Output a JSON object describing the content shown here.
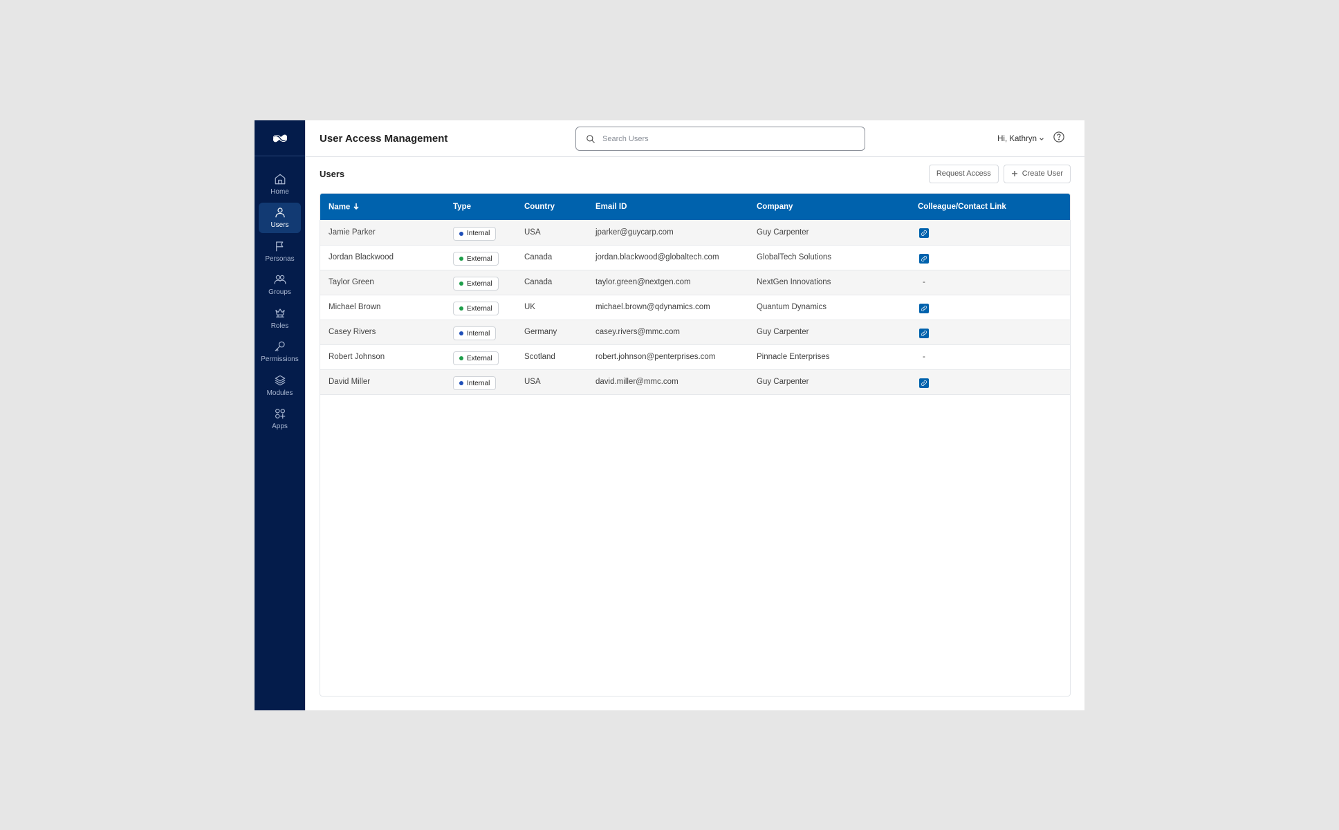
{
  "header": {
    "title": "User Access Management",
    "search_placeholder": "Search Users",
    "greeting": "Hi, Kathryn"
  },
  "sidebar": {
    "items": [
      {
        "label": "Home",
        "icon": "home-icon"
      },
      {
        "label": "Users",
        "icon": "user-icon",
        "active": true
      },
      {
        "label": "Personas",
        "icon": "flag-icon"
      },
      {
        "label": "Groups",
        "icon": "groups-icon"
      },
      {
        "label": "Roles",
        "icon": "roles-icon"
      },
      {
        "label": "Permissions",
        "icon": "key-icon"
      },
      {
        "label": "Modules",
        "icon": "layers-icon"
      },
      {
        "label": "Apps",
        "icon": "apps-icon"
      }
    ]
  },
  "section": {
    "title": "Users",
    "request_access_label": "Request Access",
    "create_user_label": "Create User"
  },
  "table": {
    "columns": [
      "Name",
      "Type",
      "Country",
      "Email ID",
      "Company",
      "Colleague/Contact Link"
    ],
    "rows": [
      {
        "name": "Jamie Parker",
        "type": "Internal",
        "country": "USA",
        "email": "jparker@guycarp.com",
        "company": "Guy Carpenter",
        "link": true
      },
      {
        "name": "Jordan Blackwood",
        "type": "External",
        "country": "Canada",
        "email": "jordan.blackwood@globaltech.com",
        "company": "GlobalTech Solutions",
        "link": true
      },
      {
        "name": "Taylor Green",
        "type": "External",
        "country": "Canada",
        "email": "taylor.green@nextgen.com",
        "company": "NextGen Innovations",
        "link": false
      },
      {
        "name": "Michael Brown",
        "type": "External",
        "country": "UK",
        "email": "michael.brown@qdynamics.com",
        "company": "Quantum Dynamics",
        "link": true
      },
      {
        "name": "Casey Rivers",
        "type": "Internal",
        "country": "Germany",
        "email": "casey.rivers@mmc.com",
        "company": "Guy Carpenter",
        "link": true
      },
      {
        "name": "Robert Johnson",
        "type": "External",
        "country": "Scotland",
        "email": "robert.johnson@penterprises.com",
        "company": "Pinnacle Enterprises",
        "link": false
      },
      {
        "name": "David Miller",
        "type": "Internal",
        "country": "USA",
        "email": "david.miller@mmc.com",
        "company": "Guy Carpenter",
        "link": true
      }
    ],
    "no_link_text": "-"
  },
  "colors": {
    "sidebar_bg": "#041c4b",
    "sidebar_active": "#123a73",
    "table_header": "#0062ad",
    "internal_dot": "#1f4fb8",
    "external_dot": "#1e9e4a"
  }
}
